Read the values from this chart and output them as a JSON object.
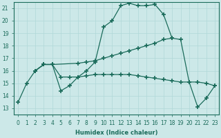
{
  "xlabel": "Humidex (Indice chaleur)",
  "bg_color": "#cce8e8",
  "line_color": "#1a6b5a",
  "grid_color": "#b0d8d8",
  "xlim": [
    -0.5,
    23.5
  ],
  "ylim": [
    12.5,
    21.5
  ],
  "yticks": [
    13,
    14,
    15,
    16,
    17,
    18,
    19,
    20,
    21
  ],
  "xticks": [
    0,
    1,
    2,
    3,
    4,
    5,
    6,
    7,
    8,
    9,
    10,
    11,
    12,
    13,
    14,
    15,
    16,
    17,
    18,
    19,
    20,
    21,
    22,
    23
  ],
  "line1_x": [
    0,
    1,
    2,
    3,
    4,
    5,
    6,
    7,
    8,
    9,
    10,
    11,
    12,
    13,
    14,
    15,
    16,
    17,
    18
  ],
  "line1_y": [
    13.5,
    15.0,
    16.0,
    16.5,
    16.5,
    14.4,
    14.8,
    15.5,
    16.0,
    16.7,
    19.5,
    20.0,
    21.2,
    21.4,
    21.2,
    21.2,
    21.3,
    20.5,
    18.6
  ],
  "line2_x": [
    2,
    3,
    4,
    7,
    8,
    9,
    10,
    11,
    12,
    13,
    14,
    15,
    16,
    17,
    18
  ],
  "line2_y": [
    16.0,
    16.5,
    16.5,
    16.6,
    16.7,
    16.8,
    17.0,
    17.2,
    17.4,
    17.6,
    17.8,
    18.0,
    18.2,
    18.5,
    18.6
  ],
  "line3_x": [
    2,
    3,
    4,
    5,
    6,
    7,
    8,
    9,
    10,
    11,
    12,
    13,
    14,
    15,
    16,
    17,
    18,
    19,
    20
  ],
  "line3_y": [
    16.0,
    16.5,
    16.5,
    15.5,
    15.5,
    15.5,
    15.6,
    15.7,
    15.7,
    15.7,
    15.7,
    15.7,
    15.6,
    15.5,
    15.4,
    15.3,
    15.2,
    15.1,
    15.1
  ],
  "line4_x": [
    18,
    19,
    20,
    21,
    22,
    23
  ],
  "line4_y": [
    18.6,
    18.5,
    15.1,
    15.1,
    15.0,
    14.8
  ],
  "line5_x": [
    20,
    21,
    22,
    23
  ],
  "line5_y": [
    15.1,
    13.1,
    13.8,
    14.8
  ]
}
